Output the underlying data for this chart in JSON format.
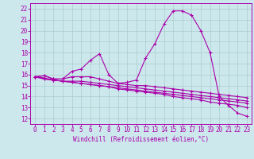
{
  "xlabel": "Windchill (Refroidissement éolien,°C)",
  "bg_color": "#cce8ec",
  "grid_color": "#aacccc",
  "line_color": "#aa00aa",
  "x_ticks": [
    0,
    1,
    2,
    3,
    4,
    5,
    6,
    7,
    8,
    9,
    10,
    11,
    12,
    13,
    14,
    15,
    16,
    17,
    18,
    19,
    20,
    21,
    22,
    23
  ],
  "y_ticks": [
    12,
    13,
    14,
    15,
    16,
    17,
    18,
    19,
    20,
    21,
    22
  ],
  "xlim": [
    -0.5,
    23.5
  ],
  "ylim": [
    11.5,
    22.5
  ],
  "lines": [
    [
      15.8,
      15.9,
      15.6,
      15.6,
      16.3,
      16.5,
      17.3,
      17.9,
      16.0,
      15.2,
      15.3,
      15.5,
      17.5,
      18.8,
      20.6,
      21.8,
      21.8,
      21.4,
      20.0,
      18.0,
      14.0,
      13.2,
      12.5,
      12.2
    ],
    [
      15.8,
      15.9,
      15.6,
      15.6,
      15.8,
      15.8,
      15.8,
      15.6,
      15.4,
      15.2,
      15.1,
      15.0,
      15.0,
      14.9,
      14.8,
      14.7,
      14.6,
      14.5,
      14.4,
      14.3,
      14.2,
      14.1,
      14.0,
      13.9
    ],
    [
      15.8,
      15.7,
      15.5,
      15.4,
      15.4,
      15.4,
      15.3,
      15.2,
      15.1,
      15.0,
      14.9,
      14.8,
      14.7,
      14.6,
      14.5,
      14.4,
      14.3,
      14.2,
      14.1,
      14.0,
      13.9,
      13.8,
      13.7,
      13.6
    ],
    [
      15.8,
      15.6,
      15.5,
      15.4,
      15.3,
      15.2,
      15.1,
      15.0,
      14.9,
      14.8,
      14.7,
      14.6,
      14.5,
      14.4,
      14.3,
      14.2,
      14.1,
      14.0,
      13.9,
      13.8,
      13.7,
      13.6,
      13.5,
      13.4
    ],
    [
      15.8,
      15.6,
      15.5,
      15.4,
      15.3,
      15.2,
      15.1,
      15.0,
      14.9,
      14.7,
      14.6,
      14.5,
      14.4,
      14.3,
      14.2,
      14.0,
      13.9,
      13.8,
      13.7,
      13.5,
      13.4,
      13.3,
      13.2,
      13.0
    ]
  ],
  "tick_fontsize": 5.5,
  "xlabel_fontsize": 5.5
}
